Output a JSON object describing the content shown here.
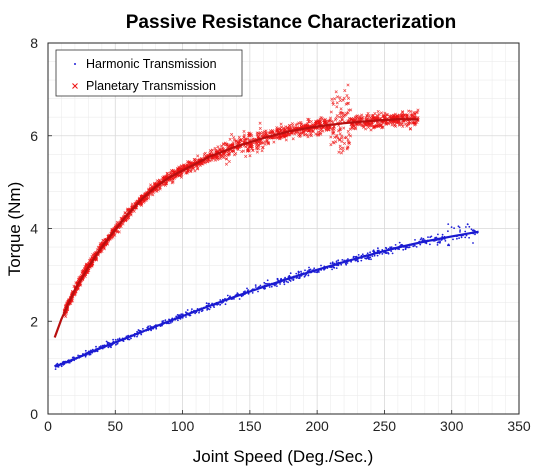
{
  "chart_data": {
    "type": "scatter",
    "title": "Passive Resistance Characterization",
    "xlabel": "Joint Speed (Deg./Sec.)",
    "ylabel": "Torque (Nm)",
    "xlim": [
      0,
      350
    ],
    "ylim": [
      0,
      8
    ],
    "xticks": [
      0,
      50,
      100,
      150,
      200,
      250,
      300,
      350
    ],
    "yticks": [
      0,
      2,
      4,
      6,
      8
    ],
    "grid": true,
    "legend_position": "top-left",
    "series": [
      {
        "name": "Harmonic Transmission",
        "marker": "point",
        "color": "#1f1fd6",
        "fit_color": "#1a1ad0",
        "fit_x": [
          5,
          20,
          40,
          60,
          80,
          100,
          120,
          140,
          160,
          180,
          200,
          220,
          240,
          260,
          280,
          300,
          320
        ],
        "fit_y": [
          1.02,
          1.19,
          1.43,
          1.66,
          1.89,
          2.11,
          2.33,
          2.54,
          2.74,
          2.93,
          3.11,
          3.28,
          3.44,
          3.59,
          3.72,
          3.83,
          3.93
        ],
        "scatter_xrange": [
          5,
          320
        ],
        "scatter_noise": 0.08
      },
      {
        "name": "Planetary Transmission",
        "marker": "x",
        "color": "#ee1111",
        "fit_color": "#b80f0f",
        "fit_x": [
          5,
          10,
          20,
          30,
          40,
          50,
          60,
          70,
          80,
          90,
          100,
          120,
          140,
          160,
          180,
          200,
          220,
          240,
          260,
          275
        ],
        "fit_y": [
          1.65,
          2.05,
          2.68,
          3.17,
          3.6,
          3.98,
          4.33,
          4.64,
          4.9,
          5.1,
          5.25,
          5.55,
          5.77,
          5.95,
          6.1,
          6.2,
          6.27,
          6.32,
          6.36,
          6.35
        ],
        "scatter_xrange": [
          12,
          275
        ],
        "scatter_noise": 0.13
      }
    ]
  }
}
